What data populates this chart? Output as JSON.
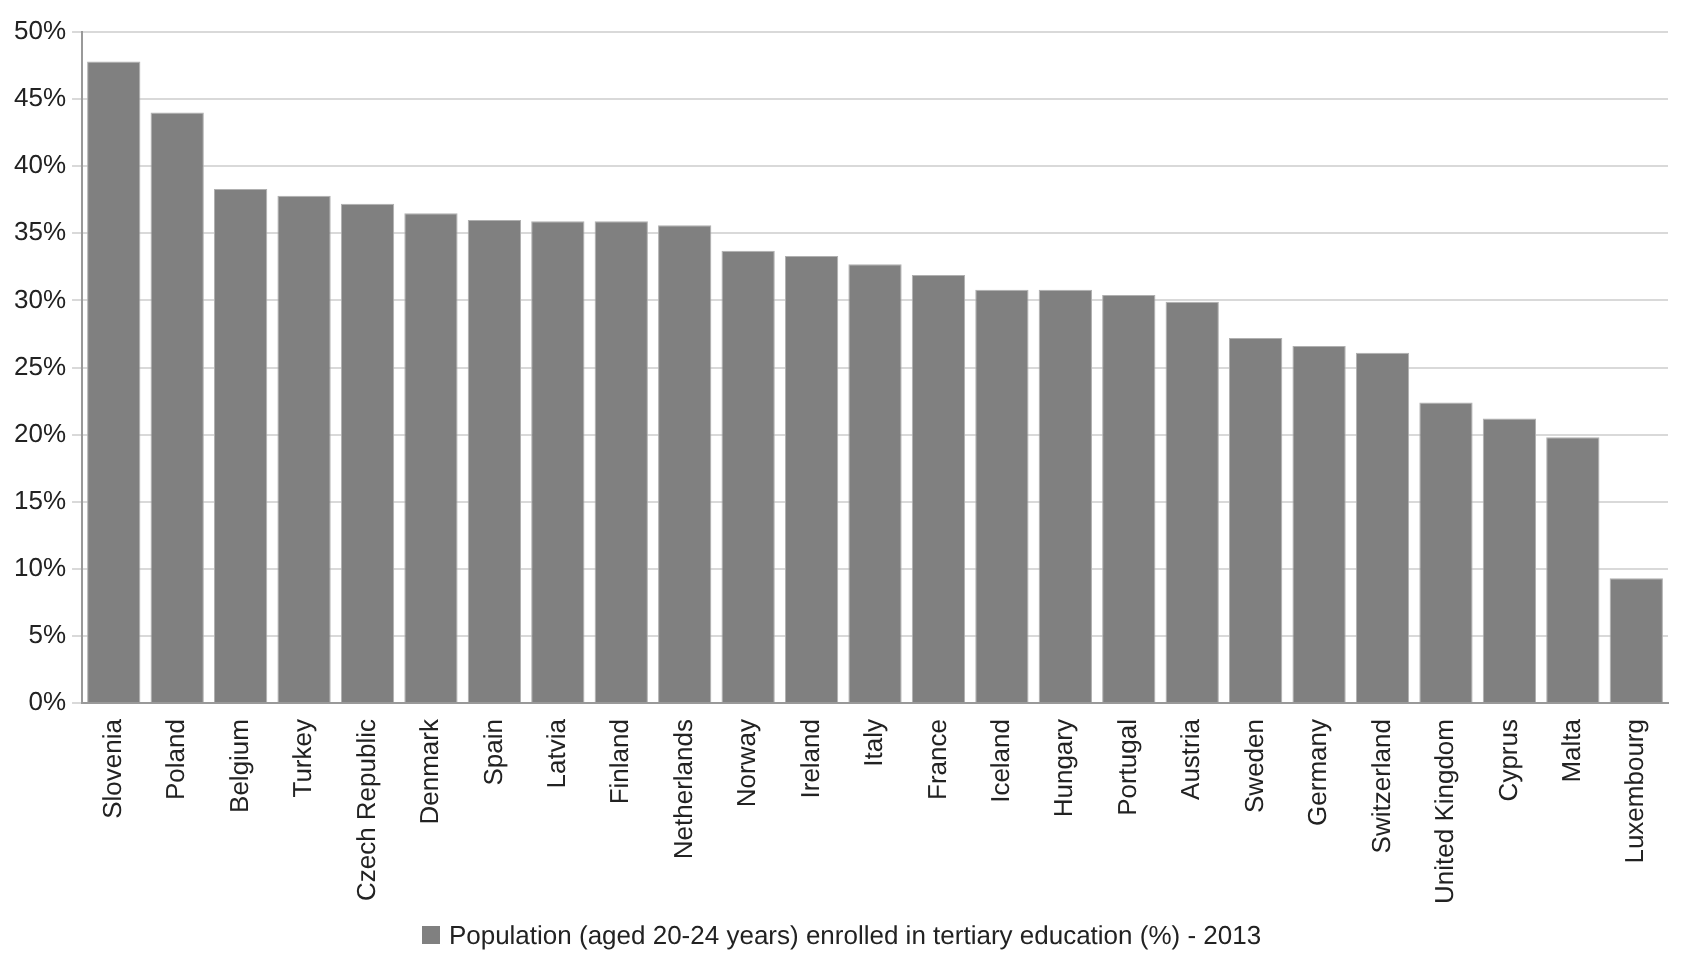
{
  "chart_data": {
    "type": "bar",
    "categories": [
      "Slovenia",
      "Poland",
      "Belgium",
      "Turkey",
      "Czech Republic",
      "Denmark",
      "Spain",
      "Latvia",
      "Finland",
      "Netherlands",
      "Norway",
      "Ireland",
      "Italy",
      "France",
      "Iceland",
      "Hungary",
      "Portugal",
      "Austria",
      "Sweden",
      "Germany",
      "Switzerland",
      "United Kingdom",
      "Cyprus",
      "Malta",
      "Luxembourg"
    ],
    "series": [
      {
        "name": "Population (aged 20-24 years) enrolled in tertiary education (%) - 2013",
        "color": "#808080",
        "values": [
          47.8,
          44.0,
          38.3,
          37.8,
          37.2,
          36.5,
          36.0,
          35.9,
          35.9,
          35.6,
          33.7,
          33.3,
          32.7,
          31.9,
          30.8,
          30.8,
          30.4,
          29.9,
          27.2,
          26.6,
          26.1,
          22.4,
          21.2,
          19.8,
          9.3
        ]
      }
    ],
    "ylim": [
      0,
      50
    ],
    "yticks": [
      {
        "value": 0,
        "label": "0%"
      },
      {
        "value": 5,
        "label": "5%"
      },
      {
        "value": 10,
        "label": "10%"
      },
      {
        "value": 15,
        "label": "15%"
      },
      {
        "value": 20,
        "label": "20%"
      },
      {
        "value": 25,
        "label": "25%"
      },
      {
        "value": 30,
        "label": "30%"
      },
      {
        "value": 35,
        "label": "35%"
      },
      {
        "value": 40,
        "label": "40%"
      },
      {
        "value": 45,
        "label": "45%"
      },
      {
        "value": 50,
        "label": "50%"
      }
    ],
    "grid": "y",
    "legend": "bottom"
  }
}
